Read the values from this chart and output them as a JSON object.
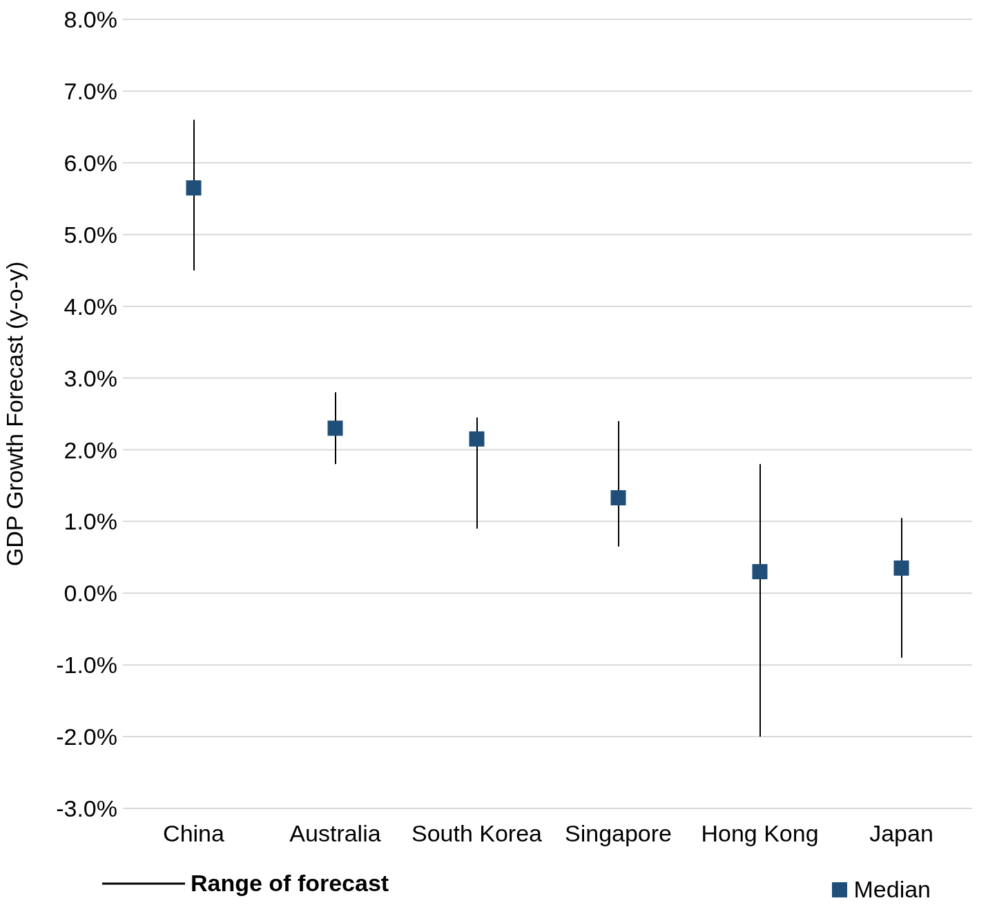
{
  "chart_data": {
    "type": "scatter",
    "ylabel": "GDP Growth Forecast (y-o-y)",
    "categories": [
      "China",
      "Australia",
      "South Korea",
      "Singapore",
      "Hong Kong",
      "Japan"
    ],
    "series": [
      {
        "name": "Range of forecast",
        "type": "bar",
        "color": "#000000",
        "base": [
          4.5,
          1.8,
          0.9,
          0.65,
          -2.0,
          -0.9
        ],
        "values": [
          2.1,
          1.0,
          1.55,
          1.75,
          3.8,
          1.95
        ]
      },
      {
        "name": "Median",
        "color": "#1f4e79",
        "marker": "square",
        "values": [
          5.65,
          2.3,
          2.15,
          1.33,
          0.3,
          0.35
        ]
      }
    ],
    "ylim": [
      -3,
      8
    ],
    "yticks": [
      {
        "value": -3,
        "label": "-3.0%"
      },
      {
        "value": -2,
        "label": "-2.0%"
      },
      {
        "value": -1,
        "label": "-1.0%"
      },
      {
        "value": 0,
        "label": "0.0%"
      },
      {
        "value": 1,
        "label": "1.0%"
      },
      {
        "value": 2,
        "label": "2.0%"
      },
      {
        "value": 3,
        "label": "3.0%"
      },
      {
        "value": 4,
        "label": "4.0%"
      },
      {
        "value": 5,
        "label": "5.0%"
      },
      {
        "value": 6,
        "label": "6.0%"
      },
      {
        "value": 7,
        "label": "7.0%"
      },
      {
        "value": 8,
        "label": "8.0%"
      }
    ],
    "grid": "y",
    "legend": "bottom"
  }
}
